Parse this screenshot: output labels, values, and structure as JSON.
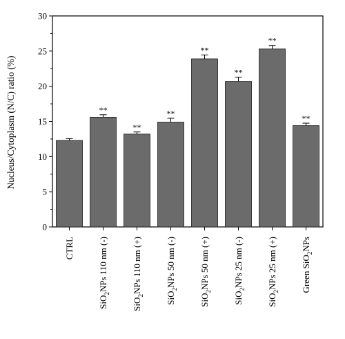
{
  "chart_data": {
    "type": "bar",
    "title": "",
    "xlabel": "",
    "ylabel": "Nucleus/Cytoplasm (N/C) ratio (%)",
    "ylim": [
      0,
      30
    ],
    "yticks": [
      "0",
      "5",
      "10",
      "15",
      "20",
      "25",
      "30"
    ],
    "grid": false,
    "categories": [
      {
        "main": "CTRL",
        "sub": "",
        "rest": ""
      },
      {
        "main": "SiO",
        "sub": "2",
        "rest": "NPs 110 nm (-)"
      },
      {
        "main": "SiO",
        "sub": "2",
        "rest": "NPs 110 nm (+)"
      },
      {
        "main": "SiO",
        "sub": "2",
        "rest": "NPs 50 nm (-)"
      },
      {
        "main": "SiO",
        "sub": "2",
        "rest": "NPs 50 nm (+)"
      },
      {
        "main": "SiO",
        "sub": "2",
        "rest": "NPs 25 nm (-)"
      },
      {
        "main": "SiO",
        "sub": "2",
        "rest": "NPs 25 nm (+)"
      },
      {
        "main": "Green SiO",
        "sub": "2",
        "rest": "NPs"
      }
    ],
    "values": [
      12.3,
      15.6,
      13.2,
      14.9,
      23.9,
      20.7,
      25.3,
      14.4
    ],
    "errors": [
      0.25,
      0.35,
      0.3,
      0.55,
      0.55,
      0.6,
      0.5,
      0.35
    ],
    "annotations": [
      "",
      "**",
      "**",
      "**",
      "**",
      "**",
      "**",
      "**"
    ],
    "colors": {
      "bar": "#6b6b6b",
      "edge": "#1a1a1a"
    }
  }
}
